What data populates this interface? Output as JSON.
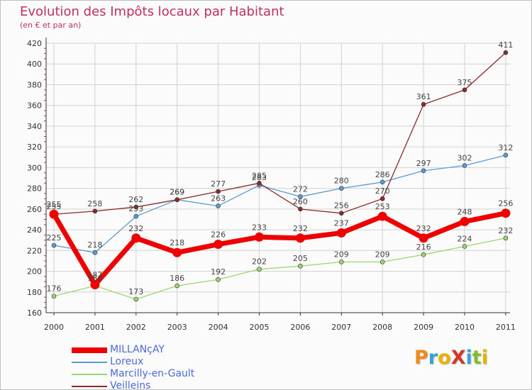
{
  "colors": {
    "title": "#c0305c",
    "axis": "#333333",
    "grid": "#d2d2d2",
    "tick_dash": "#cc3333",
    "label": "#444444",
    "legend_text": "#4d6bd8",
    "brand": [
      "#f08a1c",
      "#3aa0d8",
      "#e8b100",
      "#d13a2a",
      "#3aa0d8",
      "#7fbf2a",
      "#e8b100"
    ]
  },
  "chart_data": {
    "type": "line",
    "title": "Evolution des Impôts locaux par Habitant",
    "subtitle": "(en € et par an)",
    "xlabel": "",
    "ylabel": "",
    "ylim": [
      160,
      420
    ],
    "yticks": [
      160,
      180,
      200,
      220,
      240,
      260,
      280,
      300,
      320,
      340,
      360,
      380,
      400,
      420
    ],
    "x": [
      "2000",
      "2001",
      "2002",
      "2003",
      "2004",
      "2005",
      "2006",
      "2007",
      "2008",
      "2009",
      "2010",
      "2011"
    ],
    "grid": true,
    "legend_position": "bottom-left",
    "series": [
      {
        "name": "MILLANçAY",
        "color": "#ee0000",
        "values": [
          255,
          187,
          232,
          218,
          226,
          233,
          232,
          237,
          253,
          232,
          248,
          256
        ],
        "labels": [
          "255",
          "187",
          "232",
          "218",
          "226",
          "233",
          "232",
          "237",
          "253",
          "232",
          "248",
          "256"
        ]
      },
      {
        "name": "Loreux",
        "color": "#5a9bd4",
        "values": [
          225,
          218,
          253,
          269,
          263,
          283,
          272,
          280,
          286,
          297,
          302,
          312
        ],
        "labels": [
          "225",
          "218",
          "253",
          "269",
          "263",
          "283",
          "272",
          "280",
          "286",
          "297",
          "302",
          "312"
        ]
      },
      {
        "name": "Marcilly-en-Gault",
        "color": "#9cd66e",
        "values": [
          176,
          186,
          173,
          186,
          192,
          202,
          205,
          209,
          209,
          216,
          224,
          232
        ],
        "labels": [
          "176",
          "186",
          "173",
          "186",
          "192",
          "202",
          "205",
          "209",
          "209",
          "216",
          "224",
          "232"
        ]
      },
      {
        "name": "Veilleins",
        "color": "#8b2a2a",
        "values": [
          255,
          258,
          262,
          269,
          277,
          285,
          260,
          256,
          270,
          361,
          375,
          411
        ],
        "labels": [
          "255",
          "258",
          "262",
          "269",
          "277",
          "285",
          "260",
          "256",
          "270",
          "361",
          "375",
          "411"
        ]
      }
    ]
  },
  "branding": {
    "text": "ProXiti"
  }
}
